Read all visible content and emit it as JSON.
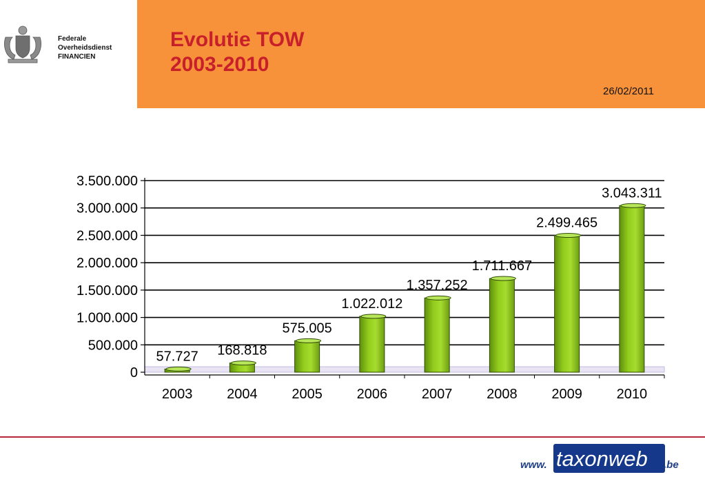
{
  "header": {
    "org_lines": [
      "Federale",
      "Overheidsdienst",
      "FINANCIEN"
    ],
    "title_lines": [
      "Evolutie TOW",
      "2003-2010"
    ],
    "date": "26/02/2011"
  },
  "footer": {
    "logo_prefix": "www.",
    "logo_brand": "taxonweb",
    "logo_suffix": ".be"
  },
  "colors": {
    "header_band": "#f7923a",
    "title": "#c8202a",
    "bar": "#92cc1c",
    "bottom_rule": "#b5283a",
    "logo_box": "#15388a"
  },
  "chart_data": {
    "type": "bar",
    "style": "3d-cylinder",
    "categories": [
      "2003",
      "2004",
      "2005",
      "2006",
      "2007",
      "2008",
      "2009",
      "2010"
    ],
    "values": [
      57727,
      168818,
      575005,
      1022012,
      1357252,
      1711667,
      2499465,
      3043311
    ],
    "data_labels": [
      "57.727",
      "168.818",
      "575.005",
      "1.022.012",
      "1.357.252",
      "1.711.667",
      "2.499.465",
      "3.043.311"
    ],
    "ylim": [
      0,
      3500000
    ],
    "yticks": [
      0,
      500000,
      1000000,
      1500000,
      2000000,
      2500000,
      3000000,
      3500000
    ],
    "ytick_labels": [
      "0",
      "500.000",
      "1.000.000",
      "1.500.000",
      "2.000.000",
      "2.500.000",
      "3.000.000",
      "3.500.000"
    ],
    "grid": true,
    "legend": false,
    "xlabel": "",
    "ylabel": ""
  }
}
